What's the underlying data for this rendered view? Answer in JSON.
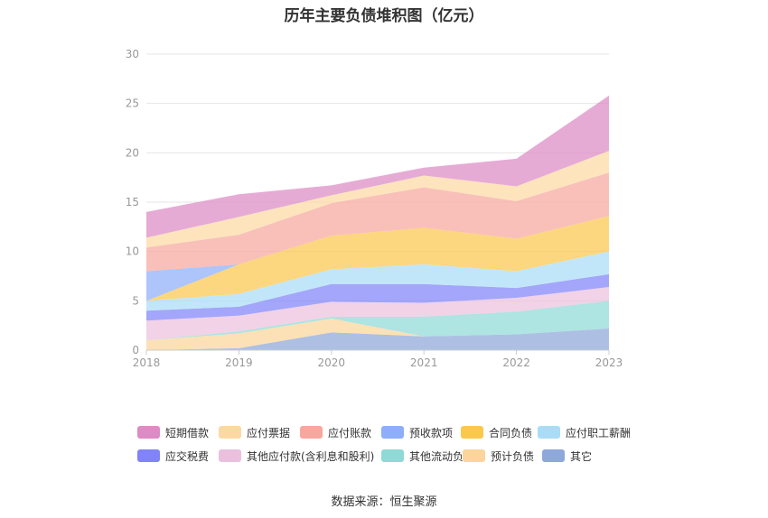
{
  "chart_data": {
    "type": "area",
    "stacked": true,
    "title": "历年主要负债堆积图（亿元）",
    "source": "数据来源：恒生聚源",
    "x": [
      "2018",
      "2019",
      "2020",
      "2021",
      "2022",
      "2023"
    ],
    "ylim": [
      0,
      30
    ],
    "yticks": [
      0,
      5,
      10,
      15,
      20,
      25,
      30
    ],
    "grid": true,
    "legend_position": "bottom",
    "series": [
      {
        "name": "其它",
        "color": "#8ea8da",
        "values": [
          0.0,
          0.2,
          1.8,
          1.4,
          1.6,
          2.2
        ]
      },
      {
        "name": "预计负债",
        "color": "#fbd59a",
        "values": [
          1.0,
          1.5,
          1.4,
          0.0,
          0.0,
          0.0
        ]
      },
      {
        "name": "其他流动负债",
        "color": "#8fd9d6",
        "values": [
          0.0,
          0.2,
          0.2,
          2.0,
          2.3,
          2.8
        ]
      },
      {
        "name": "其他应付款(含利息和股利)",
        "color": "#ebc0de",
        "values": [
          2.0,
          1.6,
          1.5,
          1.4,
          1.4,
          1.4
        ]
      },
      {
        "name": "应交税费",
        "color": "#8084f8",
        "values": [
          1.0,
          0.9,
          1.8,
          1.9,
          1.0,
          1.3
        ]
      },
      {
        "name": "应付职工薪酬",
        "color": "#aadcf6",
        "values": [
          1.0,
          1.3,
          1.5,
          2.0,
          1.7,
          2.3
        ]
      },
      {
        "name": "合同负债",
        "color": "#fbc84e",
        "values": [
          0.0,
          3.0,
          3.4,
          3.7,
          3.3,
          3.6
        ]
      },
      {
        "name": "预收款项",
        "color": "#8daefa",
        "values": [
          3.0,
          0.0,
          0.0,
          0.0,
          0.0,
          0.0
        ]
      },
      {
        "name": "应付账款",
        "color": "#f7a79e",
        "values": [
          2.4,
          3.0,
          3.3,
          4.1,
          3.8,
          4.4
        ]
      },
      {
        "name": "应付票据",
        "color": "#fcd9a4",
        "values": [
          1.0,
          1.8,
          0.8,
          1.2,
          1.5,
          2.2
        ]
      },
      {
        "name": "短期借款",
        "color": "#dd8bc5",
        "values": [
          2.6,
          2.3,
          1.0,
          0.8,
          2.8,
          5.6
        ]
      }
    ],
    "legend": [
      "短期借款",
      "应付票据",
      "应付账款",
      "预收款项",
      "合同负债",
      "应付职工薪酬",
      "应交税费",
      "其他应付款(含利息和股利)",
      "其他流动负债",
      "预计负债",
      "其它"
    ]
  }
}
